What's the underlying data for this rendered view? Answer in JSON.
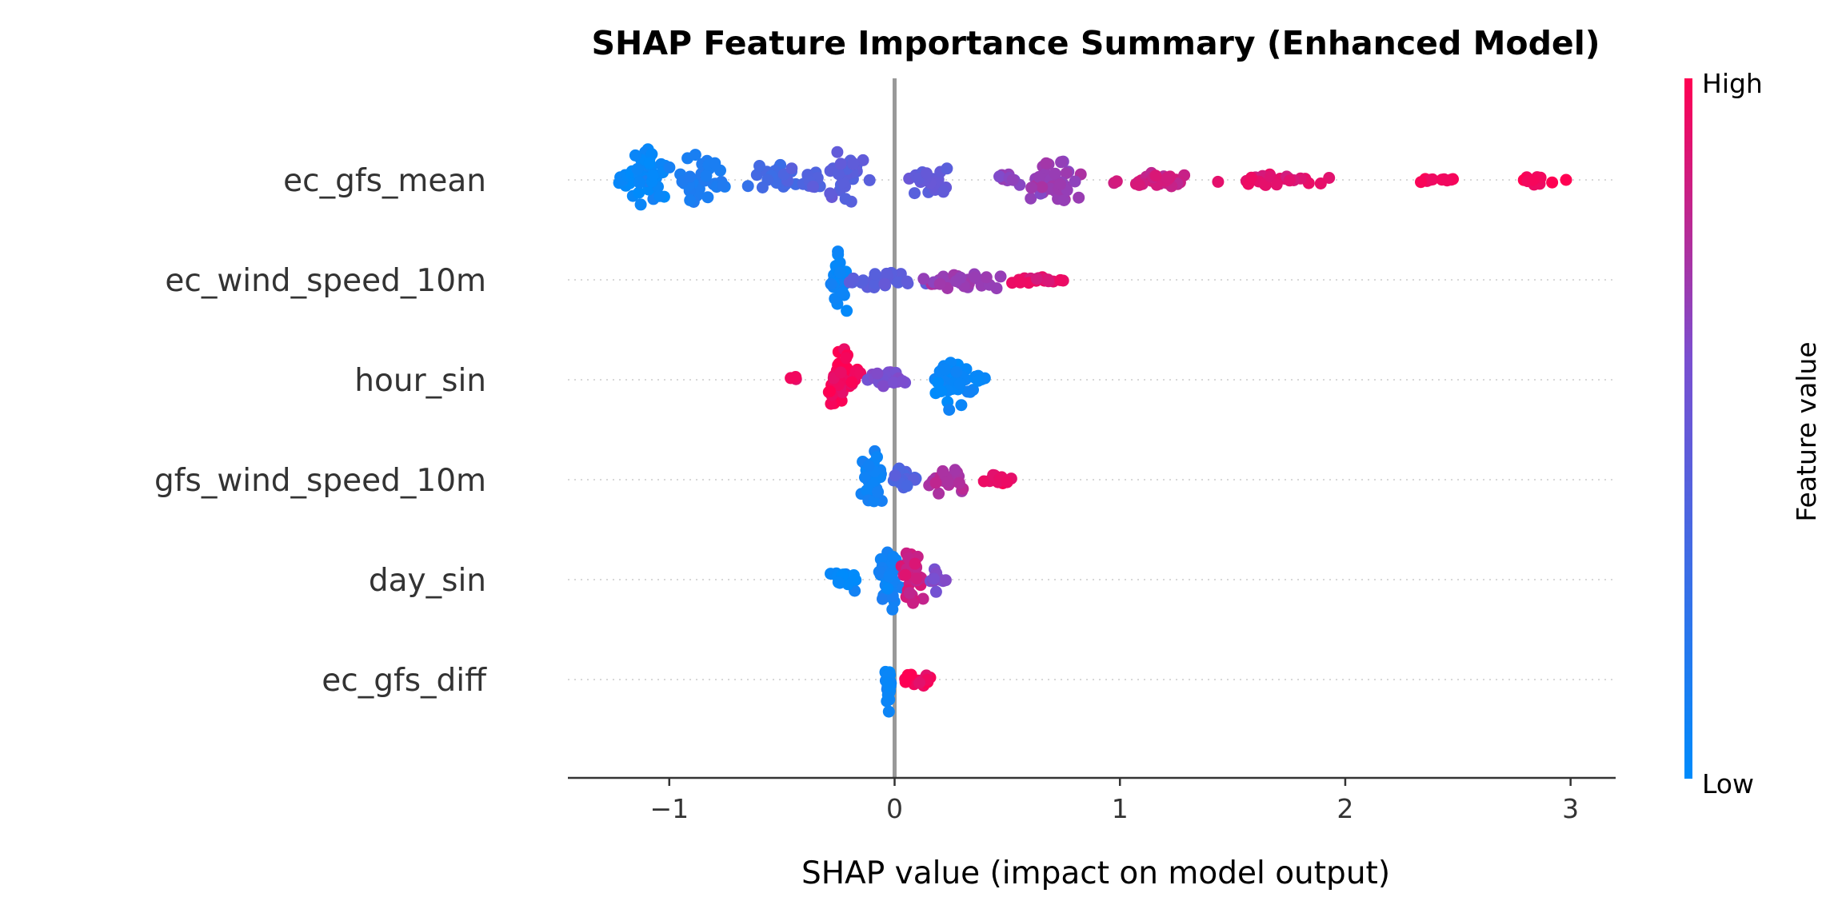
{
  "chart_data": {
    "type": "scatter",
    "subtype": "shap-beeswarm",
    "title": "SHAP Feature Importance Summary (Enhanced Model)",
    "xlabel": "SHAP value (impact on model output)",
    "xlim": [
      -1.45,
      3.2
    ],
    "xticks": [
      -1,
      0,
      1,
      2,
      3
    ],
    "xtick_labels": [
      "−1",
      "0",
      "1",
      "2",
      "3"
    ],
    "zero_line": true,
    "grid": false,
    "colorbar": {
      "label": "Feature value",
      "high_label": "High",
      "low_label": "Low",
      "low_color": "#008bfb",
      "high_color": "#ff0052"
    },
    "features": [
      {
        "name": "ec_gfs_mean",
        "clusters": [
          {
            "x": -1.18,
            "n": 14,
            "spread": 0.07,
            "h": 0.5,
            "v": 0.02
          },
          {
            "x": -1.08,
            "n": 40,
            "spread": 0.12,
            "h": 1.0,
            "v": 0.05
          },
          {
            "x": -0.85,
            "n": 34,
            "spread": 0.14,
            "h": 0.9,
            "v": 0.15
          },
          {
            "x": -0.58,
            "n": 18,
            "spread": 0.18,
            "h": 0.55,
            "v": 0.32
          },
          {
            "x": -0.4,
            "n": 14,
            "spread": 0.12,
            "h": 0.5,
            "v": 0.4
          },
          {
            "x": -0.2,
            "n": 34,
            "spread": 0.12,
            "h": 1.0,
            "v": 0.45
          },
          {
            "x": 0.15,
            "n": 20,
            "spread": 0.12,
            "h": 0.6,
            "v": 0.48
          },
          {
            "x": 0.5,
            "n": 10,
            "spread": 0.12,
            "h": 0.2,
            "v": 0.65
          },
          {
            "x": 0.72,
            "n": 45,
            "spread": 0.18,
            "h": 0.85,
            "v": 0.7
          },
          {
            "x": 1.15,
            "n": 30,
            "spread": 0.3,
            "h": 0.3,
            "v": 0.85
          },
          {
            "x": 1.7,
            "n": 24,
            "spread": 0.35,
            "h": 0.2,
            "v": 0.92
          },
          {
            "x": 2.35,
            "n": 10,
            "spread": 0.2,
            "h": 0.1,
            "v": 0.96
          },
          {
            "x": 2.83,
            "n": 10,
            "spread": 0.1,
            "h": 0.2,
            "v": 0.98
          },
          {
            "x": 2.98,
            "n": 1,
            "spread": 0.0,
            "h": 0.0,
            "v": 0.98
          }
        ]
      },
      {
        "name": "ec_wind_speed_10m",
        "clusters": [
          {
            "x": -0.25,
            "n": 28,
            "spread": 0.05,
            "h": 1.0,
            "v": 0.05
          },
          {
            "x": -0.05,
            "n": 24,
            "spread": 0.2,
            "h": 0.35,
            "v": 0.45
          },
          {
            "x": 0.3,
            "n": 30,
            "spread": 0.25,
            "h": 0.3,
            "v": 0.7
          },
          {
            "x": 0.62,
            "n": 20,
            "spread": 0.18,
            "h": 0.15,
            "v": 0.92
          }
        ]
      },
      {
        "name": "hour_sin",
        "clusters": [
          {
            "x": -0.43,
            "n": 4,
            "spread": 0.04,
            "h": 0.1,
            "v": 0.95
          },
          {
            "x": -0.23,
            "n": 45,
            "spread": 0.13,
            "h": 1.0,
            "v": 0.97
          },
          {
            "x": -0.02,
            "n": 22,
            "spread": 0.16,
            "h": 0.4,
            "v": 0.6
          },
          {
            "x": 0.25,
            "n": 36,
            "spread": 0.12,
            "h": 0.9,
            "v": 0.05
          },
          {
            "x": 0.38,
            "n": 6,
            "spread": 0.05,
            "h": 0.2,
            "v": 0.05
          }
        ]
      },
      {
        "name": "gfs_wind_speed_10m",
        "clusters": [
          {
            "x": -0.1,
            "n": 32,
            "spread": 0.06,
            "h": 1.0,
            "v": 0.08
          },
          {
            "x": 0.05,
            "n": 16,
            "spread": 0.08,
            "h": 0.4,
            "v": 0.4
          },
          {
            "x": 0.24,
            "n": 26,
            "spread": 0.12,
            "h": 0.45,
            "v": 0.75
          },
          {
            "x": 0.45,
            "n": 14,
            "spread": 0.1,
            "h": 0.25,
            "v": 0.95
          }
        ]
      },
      {
        "name": "day_sin",
        "clusters": [
          {
            "x": -0.22,
            "n": 20,
            "spread": 0.1,
            "h": 0.35,
            "v": 0.03
          },
          {
            "x": -0.02,
            "n": 40,
            "spread": 0.1,
            "h": 1.0,
            "v": 0.08
          },
          {
            "x": 0.08,
            "n": 28,
            "spread": 0.08,
            "h": 0.9,
            "v": 0.85
          },
          {
            "x": 0.18,
            "n": 12,
            "spread": 0.06,
            "h": 0.4,
            "v": 0.6
          }
        ]
      },
      {
        "name": "ec_gfs_diff",
        "clusters": [
          {
            "x": -0.03,
            "n": 26,
            "spread": 0.02,
            "h": 1.0,
            "v": 0.05
          },
          {
            "x": 0.12,
            "n": 18,
            "spread": 0.1,
            "h": 0.25,
            "v": 0.97
          }
        ]
      }
    ]
  }
}
